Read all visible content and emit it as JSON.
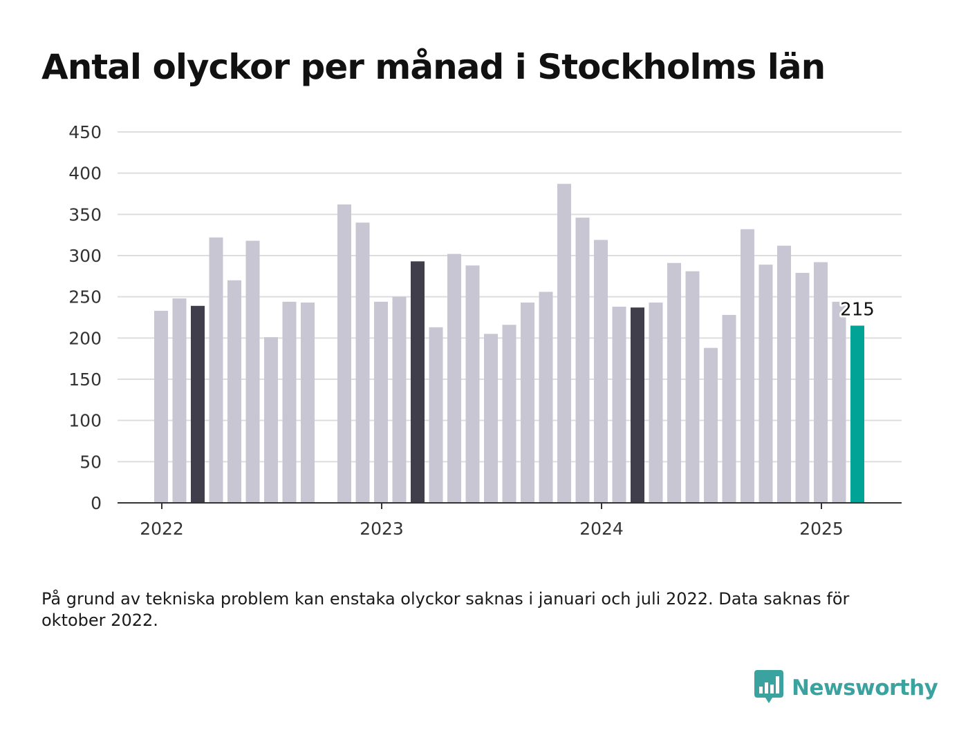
{
  "title": "Antal olyckor per månad i Stockholms län",
  "note": "På grund av tekniska problem kan enstaka olyckor saknas i januari och juli 2022. Data saknas för oktober 2022.",
  "brand": {
    "name": "Newsworthy",
    "icon": "bar-chart-speech-bubble-icon"
  },
  "colors": {
    "bar": "#c8c6d2",
    "highlight": "#403e4b",
    "current": "#00a396",
    "grid": "#dddddd",
    "axis": "#333333",
    "brand": "#3aa3a0"
  },
  "chart_data": {
    "type": "bar",
    "title": "Antal olyckor per månad i Stockholms län",
    "xlabel": "",
    "ylabel": "",
    "ylim": [
      0,
      450
    ],
    "yticks": [
      "0",
      "50",
      "100",
      "150",
      "200",
      "250",
      "300",
      "350",
      "400",
      "450"
    ],
    "xticks": [
      {
        "label": "2022",
        "month": "2022-01"
      },
      {
        "label": "2023",
        "month": "2023-01"
      },
      {
        "label": "2024",
        "month": "2024-01"
      },
      {
        "label": "2025",
        "month": "2025-01"
      }
    ],
    "grid": true,
    "categories": [
      "2022-01",
      "2022-02",
      "2022-03",
      "2022-04",
      "2022-05",
      "2022-06",
      "2022-07",
      "2022-08",
      "2022-09",
      "2022-10",
      "2022-11",
      "2022-12",
      "2023-01",
      "2023-02",
      "2023-03",
      "2023-04",
      "2023-05",
      "2023-06",
      "2023-07",
      "2023-08",
      "2023-09",
      "2023-10",
      "2023-11",
      "2023-12",
      "2024-01",
      "2024-02",
      "2024-03",
      "2024-04",
      "2024-05",
      "2024-06",
      "2024-07",
      "2024-08",
      "2024-09",
      "2024-10",
      "2024-11",
      "2024-12",
      "2025-01",
      "2025-02",
      "2025-03"
    ],
    "values": [
      233,
      248,
      239,
      322,
      270,
      318,
      201,
      244,
      243,
      null,
      362,
      340,
      244,
      250,
      293,
      213,
      302,
      288,
      205,
      216,
      243,
      256,
      387,
      346,
      319,
      238,
      237,
      243,
      291,
      281,
      188,
      228,
      332,
      289,
      312,
      279,
      292,
      244,
      215
    ],
    "highlight": [
      "2022-03",
      "2023-03",
      "2024-03"
    ],
    "current": "2025-03",
    "data_labels": [
      {
        "month": "2025-03",
        "text": "215"
      }
    ]
  }
}
